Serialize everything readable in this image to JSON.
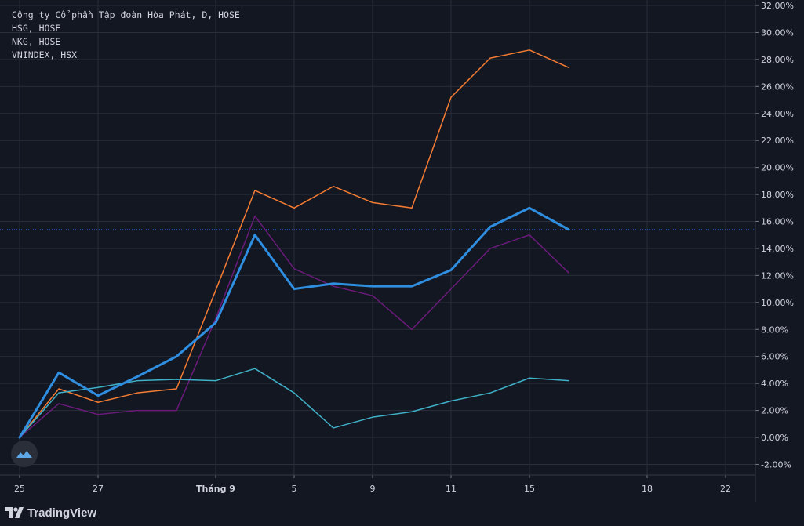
{
  "legend": [
    "Công ty Cổ phần Tập đoàn Hòa Phát, D, HOSE",
    "HSG, HOSE",
    "NKG, HOSE",
    "VNINDEX, HSX"
  ],
  "branding": {
    "text": "TradingView"
  },
  "colors": {
    "background": "#131722",
    "grid": "#2a2e39",
    "axis_text": "#d1d4dc",
    "ref_line": "#2962ff"
  },
  "chart_data": {
    "type": "line",
    "x_tick_labels": [
      "25",
      "27",
      "Tháng 9",
      "5",
      "9",
      "11",
      "15",
      "18",
      "22"
    ],
    "y_tick_labels": [
      "32.00%",
      "30.00%",
      "28.00%",
      "26.00%",
      "24.00%",
      "22.00%",
      "20.00%",
      "18.00%",
      "16.00%",
      "14.00%",
      "12.00%",
      "10.00%",
      "8.00%",
      "6.00%",
      "4.00%",
      "2.00%",
      "0.00%",
      "-2.00%"
    ],
    "ylim": [
      -2,
      32
    ],
    "y_unit": "%",
    "reference_line_y": 15.4,
    "x_index_note": "x values are trading-session indexes; tick 25 at index 0, 27 at 2, Tháng 9 at 5, 5 at 7, 9 at 9, 11 at 11, 15 at 13, 18 at 16, 22 at 18",
    "x_ticks": [
      {
        "label": "25",
        "x": 0
      },
      {
        "label": "27",
        "x": 2
      },
      {
        "label": "Tháng 9",
        "x": 5
      },
      {
        "label": "5",
        "x": 7
      },
      {
        "label": "9",
        "x": 9
      },
      {
        "label": "11",
        "x": 11
      },
      {
        "label": "15",
        "x": 13
      },
      {
        "label": "18",
        "x": 16
      },
      {
        "label": "22",
        "x": 18
      }
    ],
    "series": [
      {
        "color": "#f57c33",
        "width": 1.5,
        "x": [
          0,
          1,
          2,
          3,
          4,
          5,
          6,
          7,
          8,
          9,
          10,
          11,
          12,
          13,
          14
        ],
        "values": [
          0,
          3.6,
          2.6,
          3.3,
          3.6,
          10.9,
          18.3,
          17.0,
          18.6,
          17.4,
          17.0,
          25.2,
          28.1,
          28.7,
          27.4
        ]
      },
      {
        "color": "#6a1b7a",
        "width": 1.5,
        "x": [
          0,
          1,
          2,
          3,
          4,
          5,
          6,
          7,
          8,
          9,
          10,
          11,
          12,
          13,
          14
        ],
        "values": [
          0,
          2.5,
          1.7,
          2.0,
          2.0,
          8.8,
          16.4,
          12.5,
          11.2,
          10.5,
          8.0,
          11.0,
          14.0,
          15.0,
          12.2
        ]
      },
      {
        "color": "#3fb0c7",
        "width": 1.5,
        "x": [
          0,
          1,
          2,
          3,
          4,
          5,
          6,
          7,
          8,
          9,
          10,
          11,
          12,
          13,
          14
        ],
        "values": [
          0,
          3.3,
          3.7,
          4.2,
          4.3,
          4.2,
          5.1,
          3.3,
          0.7,
          1.5,
          1.9,
          2.7,
          3.3,
          4.4,
          4.2
        ]
      },
      {
        "color": "#2f8ee0",
        "width": 3,
        "x": [
          0,
          1,
          2,
          3,
          4,
          5,
          6,
          7,
          8,
          9,
          10,
          11,
          12,
          13,
          14
        ],
        "values": [
          0,
          4.8,
          3.1,
          4.5,
          6.0,
          8.5,
          15.0,
          11.0,
          11.4,
          11.2,
          11.2,
          12.4,
          15.6,
          17.0,
          15.4
        ]
      }
    ]
  }
}
